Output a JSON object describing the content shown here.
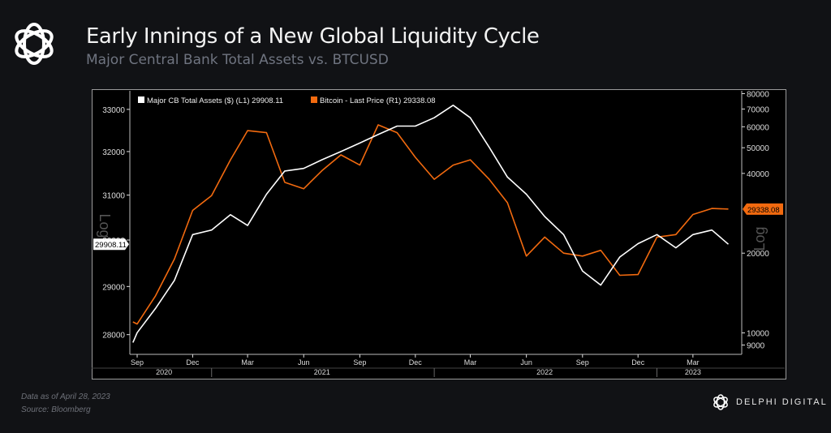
{
  "header": {
    "title": "Early Innings of a New Global Liquidity Cycle",
    "subtitle": "Major Central Bank Total Assets vs. BTCUSD",
    "logo_icon": "delphi-knot-logo"
  },
  "footer": {
    "data_as_of": "Data as of April 28, 2023",
    "source": "Source: Bloomberg",
    "brand": "DELPHI DIGITAL"
  },
  "chart_data": {
    "type": "line",
    "title": "",
    "legend": [
      {
        "label": "Major CB Total Assets ($) (L1) 29908.11",
        "color": "#ffffff"
      },
      {
        "label": "Bitcoin - Last Price (R1) 29338.08",
        "color": "#f26a0f"
      }
    ],
    "legend_placement": "top-left",
    "grid": false,
    "left_axis": {
      "scale": "log",
      "label": "Log",
      "ticks": [
        28000,
        29000,
        30000,
        31000,
        32000,
        33000
      ],
      "range": [
        27600,
        33450
      ],
      "last_value_tag": "29908.11"
    },
    "right_axis": {
      "scale": "log",
      "label": "Log",
      "ticks": [
        9000,
        10000,
        20000,
        40000,
        50000,
        60000,
        70000,
        80000
      ],
      "range": [
        8300,
        82000
      ],
      "last_value_tag": "29338.08"
    },
    "x_axis": {
      "range": [
        "2020-08-20",
        "2023-05-20"
      ],
      "month_ticks": [
        {
          "date": "2020-09-01",
          "label": "Sep"
        },
        {
          "date": "2020-12-01",
          "label": "Dec"
        },
        {
          "date": "2021-03-01",
          "label": "Mar"
        },
        {
          "date": "2021-06-01",
          "label": "Jun"
        },
        {
          "date": "2021-09-01",
          "label": "Sep"
        },
        {
          "date": "2021-12-01",
          "label": "Dec"
        },
        {
          "date": "2022-03-01",
          "label": "Mar"
        },
        {
          "date": "2022-06-01",
          "label": "Jun"
        },
        {
          "date": "2022-09-01",
          "label": "Sep"
        },
        {
          "date": "2022-12-01",
          "label": "Dec"
        },
        {
          "date": "2023-03-01",
          "label": "Mar"
        }
      ],
      "year_labels": [
        {
          "date": "2020-10-15",
          "label": "2020"
        },
        {
          "date": "2021-07-01",
          "label": "2021"
        },
        {
          "date": "2022-07-01",
          "label": "2022"
        },
        {
          "date": "2023-03-01",
          "label": "2023"
        }
      ]
    },
    "x": [
      "2020-08-25",
      "2020-09-01",
      "2020-10-01",
      "2020-11-01",
      "2020-12-01",
      "2021-01-01",
      "2021-02-01",
      "2021-03-01",
      "2021-04-01",
      "2021-05-01",
      "2021-06-01",
      "2021-07-01",
      "2021-08-01",
      "2021-09-01",
      "2021-10-01",
      "2021-11-01",
      "2021-12-01",
      "2022-01-01",
      "2022-02-01",
      "2022-03-01",
      "2022-04-01",
      "2022-05-01",
      "2022-06-01",
      "2022-07-01",
      "2022-08-01",
      "2022-09-01",
      "2022-10-01",
      "2022-11-01",
      "2022-12-01",
      "2023-01-01",
      "2023-02-01",
      "2023-03-01",
      "2023-04-01",
      "2023-04-28"
    ],
    "series": [
      {
        "name": "Major CB Total Assets ($) (L1)",
        "axis": "left",
        "color": "#ffffff",
        "values": [
          27840,
          28040,
          28540,
          29130,
          30120,
          30220,
          30560,
          30320,
          31020,
          31550,
          31610,
          31810,
          32000,
          32200,
          32400,
          32600,
          32600,
          32800,
          33100,
          32800,
          32100,
          31410,
          31020,
          30520,
          30120,
          29330,
          29030,
          29630,
          29920,
          30120,
          29830,
          30120,
          30220,
          29908.11
        ]
      },
      {
        "name": "Bitcoin - Last Price (R1)",
        "axis": "right",
        "color": "#f26a0f",
        "values": [
          11000,
          10800,
          13800,
          19000,
          29000,
          33000,
          45000,
          58000,
          57000,
          37000,
          35000,
          41000,
          47000,
          43000,
          61000,
          57000,
          46000,
          38000,
          43000,
          45000,
          38000,
          31000,
          19500,
          23000,
          20000,
          19500,
          20500,
          16500,
          16600,
          23000,
          23500,
          28000,
          29500,
          29338.08
        ]
      }
    ]
  }
}
